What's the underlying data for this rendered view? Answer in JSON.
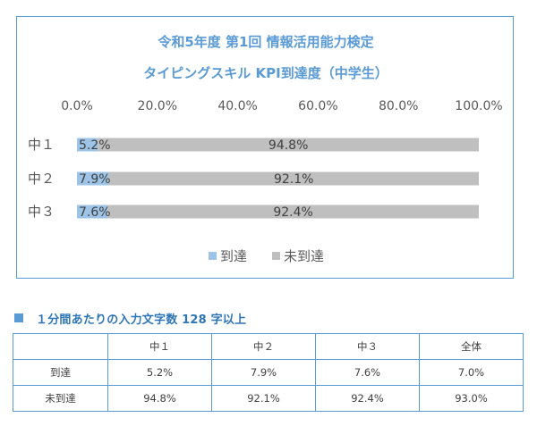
{
  "chart_data": {
    "type": "bar",
    "orientation": "horizontal",
    "stacked": true,
    "title_lines": [
      "令和5年度 第1回 情報活用能力検定",
      "タイピングスキル KPI到達度（中学生）"
    ],
    "categories": [
      "中１",
      "中２",
      "中３"
    ],
    "series": [
      {
        "name": "到達",
        "values": [
          5.2,
          7.9,
          7.6
        ],
        "labels": [
          "5.2%",
          "7.9%",
          "7.6%"
        ],
        "color": "#9dc3e6"
      },
      {
        "name": "未到達",
        "values": [
          94.8,
          92.1,
          92.4
        ],
        "labels": [
          "94.8%",
          "92.1%",
          "92.4%"
        ],
        "color": "#bfbfbf"
      }
    ],
    "x_ticks": [
      "0.0%",
      "20.0%",
      "40.0%",
      "60.0%",
      "80.0%",
      "100.0%"
    ],
    "xlim": [
      0,
      100
    ],
    "x_axis_position": "top",
    "grid": false,
    "legend_position": "bottom"
  },
  "table": {
    "heading_icon": "square-bullet",
    "heading": "１分間あたりの入力文字数 128 字以上",
    "columns": [
      "",
      "中１",
      "中２",
      "中３",
      "全体"
    ],
    "rows": [
      {
        "label": "到達",
        "values": [
          "5.2%",
          "7.9%",
          "7.6%",
          "7.0%"
        ]
      },
      {
        "label": "未到達",
        "values": [
          "94.8%",
          "92.1%",
          "92.4%",
          "93.0%"
        ]
      }
    ]
  },
  "colors": {
    "accent": "#5b9bd5",
    "heading": "#2e75b6"
  }
}
